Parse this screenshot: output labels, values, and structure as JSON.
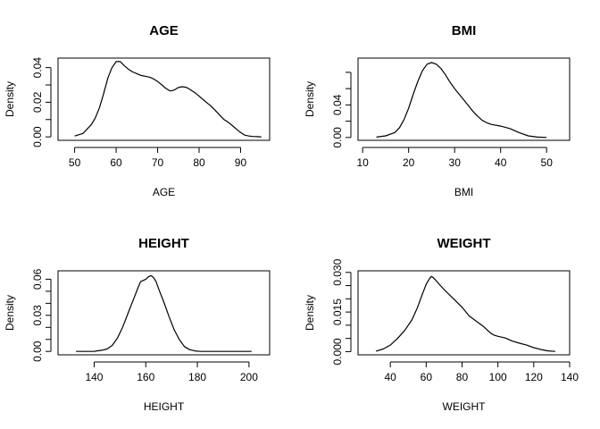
{
  "chart_data": [
    {
      "type": "line",
      "title": "AGE",
      "xlabel": "AGE",
      "ylabel": "Density",
      "xlim": [
        46,
        97
      ],
      "ylim": [
        -0.002,
        0.0455
      ],
      "xticks": [
        50,
        60,
        70,
        80,
        90
      ],
      "yticks": [
        0.0,
        0.01,
        0.02,
        0.03,
        0.04
      ],
      "ytick_labels": [
        "0.00",
        "",
        "0.02",
        "",
        "0.04"
      ],
      "grid": false,
      "legend": "none",
      "series": [
        {
          "x": [
            50,
            52,
            54,
            55,
            56,
            57,
            58,
            59,
            60,
            61,
            62,
            63,
            64,
            65,
            66,
            67,
            68,
            69,
            70,
            71,
            72,
            73,
            74,
            75,
            76,
            77,
            78,
            79,
            80,
            81,
            82,
            83,
            84,
            85,
            86,
            87,
            88,
            89,
            90,
            91,
            92,
            93,
            94,
            95
          ],
          "y": [
            0.0005,
            0.002,
            0.007,
            0.011,
            0.017,
            0.025,
            0.034,
            0.04,
            0.0435,
            0.0435,
            0.041,
            0.039,
            0.0375,
            0.0365,
            0.0355,
            0.035,
            0.0345,
            0.0335,
            0.032,
            0.03,
            0.028,
            0.0265,
            0.027,
            0.0285,
            0.029,
            0.0285,
            0.027,
            0.0255,
            0.0235,
            0.0215,
            0.0195,
            0.0175,
            0.015,
            0.0125,
            0.01,
            0.0085,
            0.0065,
            0.0045,
            0.0025,
            0.001,
            0.0005,
            0.0002,
            0.0001,
            0.0
          ]
        }
      ]
    },
    {
      "type": "line",
      "title": "BMI",
      "xlabel": "BMI",
      "ylabel": "Density",
      "xlim": [
        9,
        55
      ],
      "ylim": [
        -0.0035,
        0.0975
      ],
      "xticks": [
        10,
        20,
        30,
        40,
        50
      ],
      "yticks": [
        0.0,
        0.02,
        0.04,
        0.06,
        0.08
      ],
      "ytick_labels": [
        "0.00",
        "",
        "0.04",
        "",
        ""
      ],
      "grid": false,
      "legend": "none",
      "series": [
        {
          "x": [
            13,
            15,
            17,
            18,
            19,
            20,
            21,
            22,
            23,
            24,
            25,
            26,
            27,
            28,
            29,
            30,
            31,
            32,
            33,
            34,
            35,
            36,
            37,
            38,
            40,
            42,
            44,
            46,
            48,
            50
          ],
          "y": [
            0.0005,
            0.002,
            0.006,
            0.012,
            0.022,
            0.036,
            0.053,
            0.069,
            0.082,
            0.09,
            0.092,
            0.09,
            0.085,
            0.077,
            0.068,
            0.06,
            0.053,
            0.046,
            0.039,
            0.032,
            0.026,
            0.021,
            0.018,
            0.016,
            0.014,
            0.011,
            0.006,
            0.002,
            0.0005,
            0.0
          ]
        }
      ]
    },
    {
      "type": "line",
      "title": "HEIGHT",
      "xlabel": "HEIGHT",
      "ylabel": "Density",
      "xlim": [
        126,
        208
      ],
      "ylim": [
        -0.0028,
        0.067
      ],
      "xticks": [
        140,
        160,
        180,
        200
      ],
      "yticks": [
        0.0,
        0.01,
        0.02,
        0.03,
        0.04,
        0.05,
        0.06
      ],
      "ytick_labels": [
        "0.00",
        "",
        "",
        "0.03",
        "",
        "",
        "0.06"
      ],
      "grid": false,
      "legend": "none",
      "series": [
        {
          "x": [
            133,
            136,
            138,
            140,
            141,
            143,
            145,
            147,
            149,
            151,
            153,
            155,
            157,
            158,
            159,
            160,
            161,
            162,
            163,
            164,
            165,
            167,
            169,
            171,
            173,
            175,
            177,
            179,
            181,
            186,
            195,
            198,
            201
          ],
          "y": [
            0.0,
            0.0,
            0.0,
            0.0,
            0.0005,
            0.001,
            0.002,
            0.005,
            0.011,
            0.02,
            0.031,
            0.042,
            0.053,
            0.058,
            0.059,
            0.06,
            0.062,
            0.063,
            0.0615,
            0.058,
            0.052,
            0.041,
            0.029,
            0.018,
            0.01,
            0.004,
            0.0015,
            0.0005,
            0.0,
            0.0,
            0.0,
            0.0,
            0.0
          ]
        }
      ]
    },
    {
      "type": "line",
      "title": "WEIGHT",
      "xlabel": "WEIGHT",
      "ylabel": "Density",
      "xlim": [
        22,
        140
      ],
      "ylim": [
        -0.0012,
        0.0306
      ],
      "xticks": [
        40,
        60,
        80,
        100,
        120,
        140
      ],
      "yticks": [
        0.0,
        0.005,
        0.01,
        0.015,
        0.02,
        0.025,
        0.03
      ],
      "ytick_labels": [
        "0.000",
        "",
        "",
        "0.015",
        "",
        "",
        "0.030"
      ],
      "grid": false,
      "legend": "none",
      "series": [
        {
          "x": [
            32,
            36,
            40,
            44,
            48,
            52,
            55,
            58,
            60,
            62,
            63,
            64,
            66,
            68,
            70,
            73,
            76,
            80,
            84,
            88,
            92,
            96,
            98,
            100,
            104,
            108,
            112,
            116,
            120,
            124,
            128,
            132
          ],
          "y": [
            0.0002,
            0.001,
            0.0025,
            0.005,
            0.008,
            0.012,
            0.0165,
            0.022,
            0.0255,
            0.0278,
            0.0285,
            0.028,
            0.0265,
            0.025,
            0.0235,
            0.0215,
            0.0195,
            0.0168,
            0.0135,
            0.0115,
            0.0095,
            0.007,
            0.0062,
            0.0058,
            0.0052,
            0.004,
            0.0032,
            0.0025,
            0.0015,
            0.0008,
            0.0003,
            0.0001
          ]
        }
      ]
    }
  ]
}
